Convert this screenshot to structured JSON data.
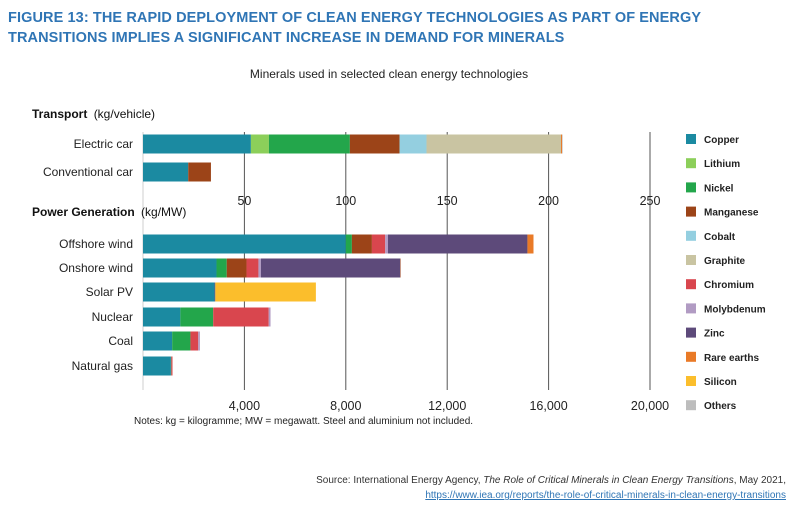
{
  "figure": {
    "title_line1": "FIGURE 13: THE RAPID DEPLOYMENT OF CLEAN ENERGY TECHNOLOGIES AS PART OF ENERGY",
    "title_line2": "TRANSITIONS IMPLIES A SIGNIFICANT INCREASE IN DEMAND FOR MINERALS",
    "notes": "Notes: kg = kilogramme; MW = megawatt. Steel and aluminium not included.",
    "source_prefix": "Source: International Energy Agency, ",
    "source_italic": "The Role of Critical Minerals in Clean Energy Transitions",
    "source_suffix": ", May 2021,",
    "source_link": "https://www.iea.org/reports/the-role-of-critical-minerals-in-clean-energy-transitions"
  },
  "chart_data": {
    "type": "bar",
    "orientation": "horizontal",
    "stacked": true,
    "title": "Minerals used in selected clean energy technologies",
    "legend_position": "right",
    "minerals": [
      {
        "name": "Copper",
        "color": "#1b8aa1"
      },
      {
        "name": "Lithium",
        "color": "#8ccf5a"
      },
      {
        "name": "Nickel",
        "color": "#23a64b"
      },
      {
        "name": "Manganese",
        "color": "#9c4418"
      },
      {
        "name": "Cobalt",
        "color": "#94cfe0"
      },
      {
        "name": "Graphite",
        "color": "#c9c4a2"
      },
      {
        "name": "Chromium",
        "color": "#d9464e"
      },
      {
        "name": "Molybdenum",
        "color": "#b19bc3"
      },
      {
        "name": "Zinc",
        "color": "#5d4a7a"
      },
      {
        "name": "Rare earths",
        "color": "#e97a27"
      },
      {
        "name": "Silicon",
        "color": "#fbbe2c"
      },
      {
        "name": "Others",
        "color": "#bdbdbd"
      }
    ],
    "panels": [
      {
        "title": "Transport",
        "unit": "(kg/vehicle)",
        "range": [
          0,
          250
        ],
        "ticks": [
          50,
          100,
          150,
          200,
          250
        ],
        "tick_labels": [
          "50",
          "100",
          "150",
          "200",
          "250"
        ],
        "categories": [
          "Electric car",
          "Conventional car"
        ],
        "values": [
          [
            53.2,
            8.9,
            39.9,
            24.5,
            13.3,
            66.3,
            0,
            0,
            0,
            0.5,
            0,
            0.3
          ],
          [
            22.3,
            0,
            0,
            11.2,
            0,
            0,
            0,
            0,
            0,
            0,
            0,
            0
          ]
        ]
      },
      {
        "title": "Power Generation",
        "unit": "(kg/MW)",
        "range": [
          0,
          20000
        ],
        "ticks": [
          4000,
          8000,
          12000,
          16000,
          20000
        ],
        "tick_labels": [
          "4,000",
          "8,000",
          "12,000",
          "16,000",
          "20,000"
        ],
        "categories": [
          "Offshore wind",
          "Onshore wind",
          "Solar PV",
          "Nuclear",
          "Coal",
          "Natural gas"
        ],
        "values": [
          [
            8000,
            0,
            240,
            790,
            0,
            0,
            525,
            110,
            5500,
            239,
            0,
            0
          ],
          [
            2900,
            0,
            404,
            780,
            0,
            0,
            470,
            99,
            5500,
            14,
            0,
            0
          ],
          [
            2822,
            0,
            1,
            0,
            0,
            0,
            0,
            0,
            30,
            0,
            3967,
            0
          ],
          [
            1473,
            0,
            1297,
            0,
            0,
            0,
            2190,
            71,
            0,
            0,
            0,
            0
          ],
          [
            1150,
            0,
            721,
            0,
            0,
            0,
            308,
            66,
            0,
            0,
            0,
            0
          ],
          [
            1100,
            0,
            16,
            0,
            0,
            0,
            48,
            0,
            0,
            0,
            0,
            0
          ]
        ]
      }
    ]
  }
}
